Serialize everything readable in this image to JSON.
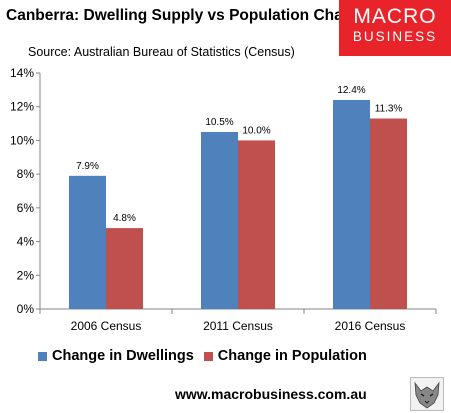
{
  "header": {
    "title": "Canberra: Dwelling Supply vs Population Change",
    "subtitle": "Source: Australian Bureau of Statistics (Census)"
  },
  "logo": {
    "line1": "MACRO",
    "line2": "BUSINESS",
    "bg_color": "#e8242a"
  },
  "footer": {
    "website": "www.macrobusiness.com.au",
    "emblem": "wolf-icon"
  },
  "chart_data": {
    "type": "bar",
    "categories": [
      "2006 Census",
      "2011 Census",
      "2016 Census"
    ],
    "series": [
      {
        "name": "Change in Dwellings",
        "values": [
          7.9,
          10.5,
          12.4
        ],
        "labels": [
          "7.9%",
          "10.5%",
          "12.4%"
        ],
        "color": "#4f81bd"
      },
      {
        "name": "Change in Population",
        "values": [
          4.8,
          10.0,
          11.3
        ],
        "labels": [
          "4.8%",
          "10.0%",
          "11.3%"
        ],
        "color": "#c0504d"
      }
    ],
    "title": "Canberra: Dwelling Supply vs Population Change",
    "ylim": [
      0,
      14
    ],
    "yticks": [
      0,
      2,
      4,
      6,
      8,
      10,
      12,
      14
    ],
    "ytick_labels": [
      "0%",
      "2%",
      "4%",
      "6%",
      "8%",
      "10%",
      "12%",
      "14%"
    ],
    "grid": false,
    "legend": "bottom"
  }
}
